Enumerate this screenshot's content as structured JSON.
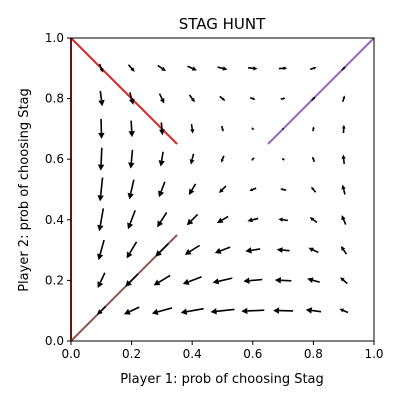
{
  "chart_data": {
    "type": "quiver",
    "title": "STAG HUNT",
    "xlabel": "Player 1: prob of choosing Stag",
    "ylabel": "Player 2: prob of choosing Stag",
    "xlim": [
      0,
      1
    ],
    "ylim": [
      0,
      1
    ],
    "xticks": [
      "0.0",
      "0.2",
      "0.4",
      "0.6",
      "0.8",
      "1.0"
    ],
    "yticks": [
      "0.0",
      "0.2",
      "0.4",
      "0.6",
      "0.8",
      "1.0"
    ],
    "grid": false,
    "field": {
      "grid_x": [
        0.1,
        0.2,
        0.3,
        0.4,
        0.5,
        0.6,
        0.7,
        0.8,
        0.9
      ],
      "grid_y": [
        0.1,
        0.2,
        0.3,
        0.4,
        0.5,
        0.6,
        0.7,
        0.8,
        0.9
      ],
      "dynamics": "replicator",
      "payoff": {
        "stag_stag": 4,
        "stag_hare": 0,
        "hare_stag": 3,
        "hare_hare": 2
      }
    },
    "trajectories": [
      {
        "color": "#d62728",
        "points": [
          [
            0.0,
            0.0
          ],
          [
            0.0,
            1.0
          ]
        ]
      },
      {
        "color": "#d62728",
        "points": [
          [
            0.0,
            1.0
          ],
          [
            0.35,
            0.65
          ]
        ]
      },
      {
        "color": "#9467bd",
        "points": [
          [
            0.65,
            0.65
          ],
          [
            1.0,
            1.0
          ]
        ]
      },
      {
        "color": "#8c564b",
        "points": [
          [
            0.0,
            0.0
          ],
          [
            0.35,
            0.35
          ]
        ]
      }
    ]
  }
}
